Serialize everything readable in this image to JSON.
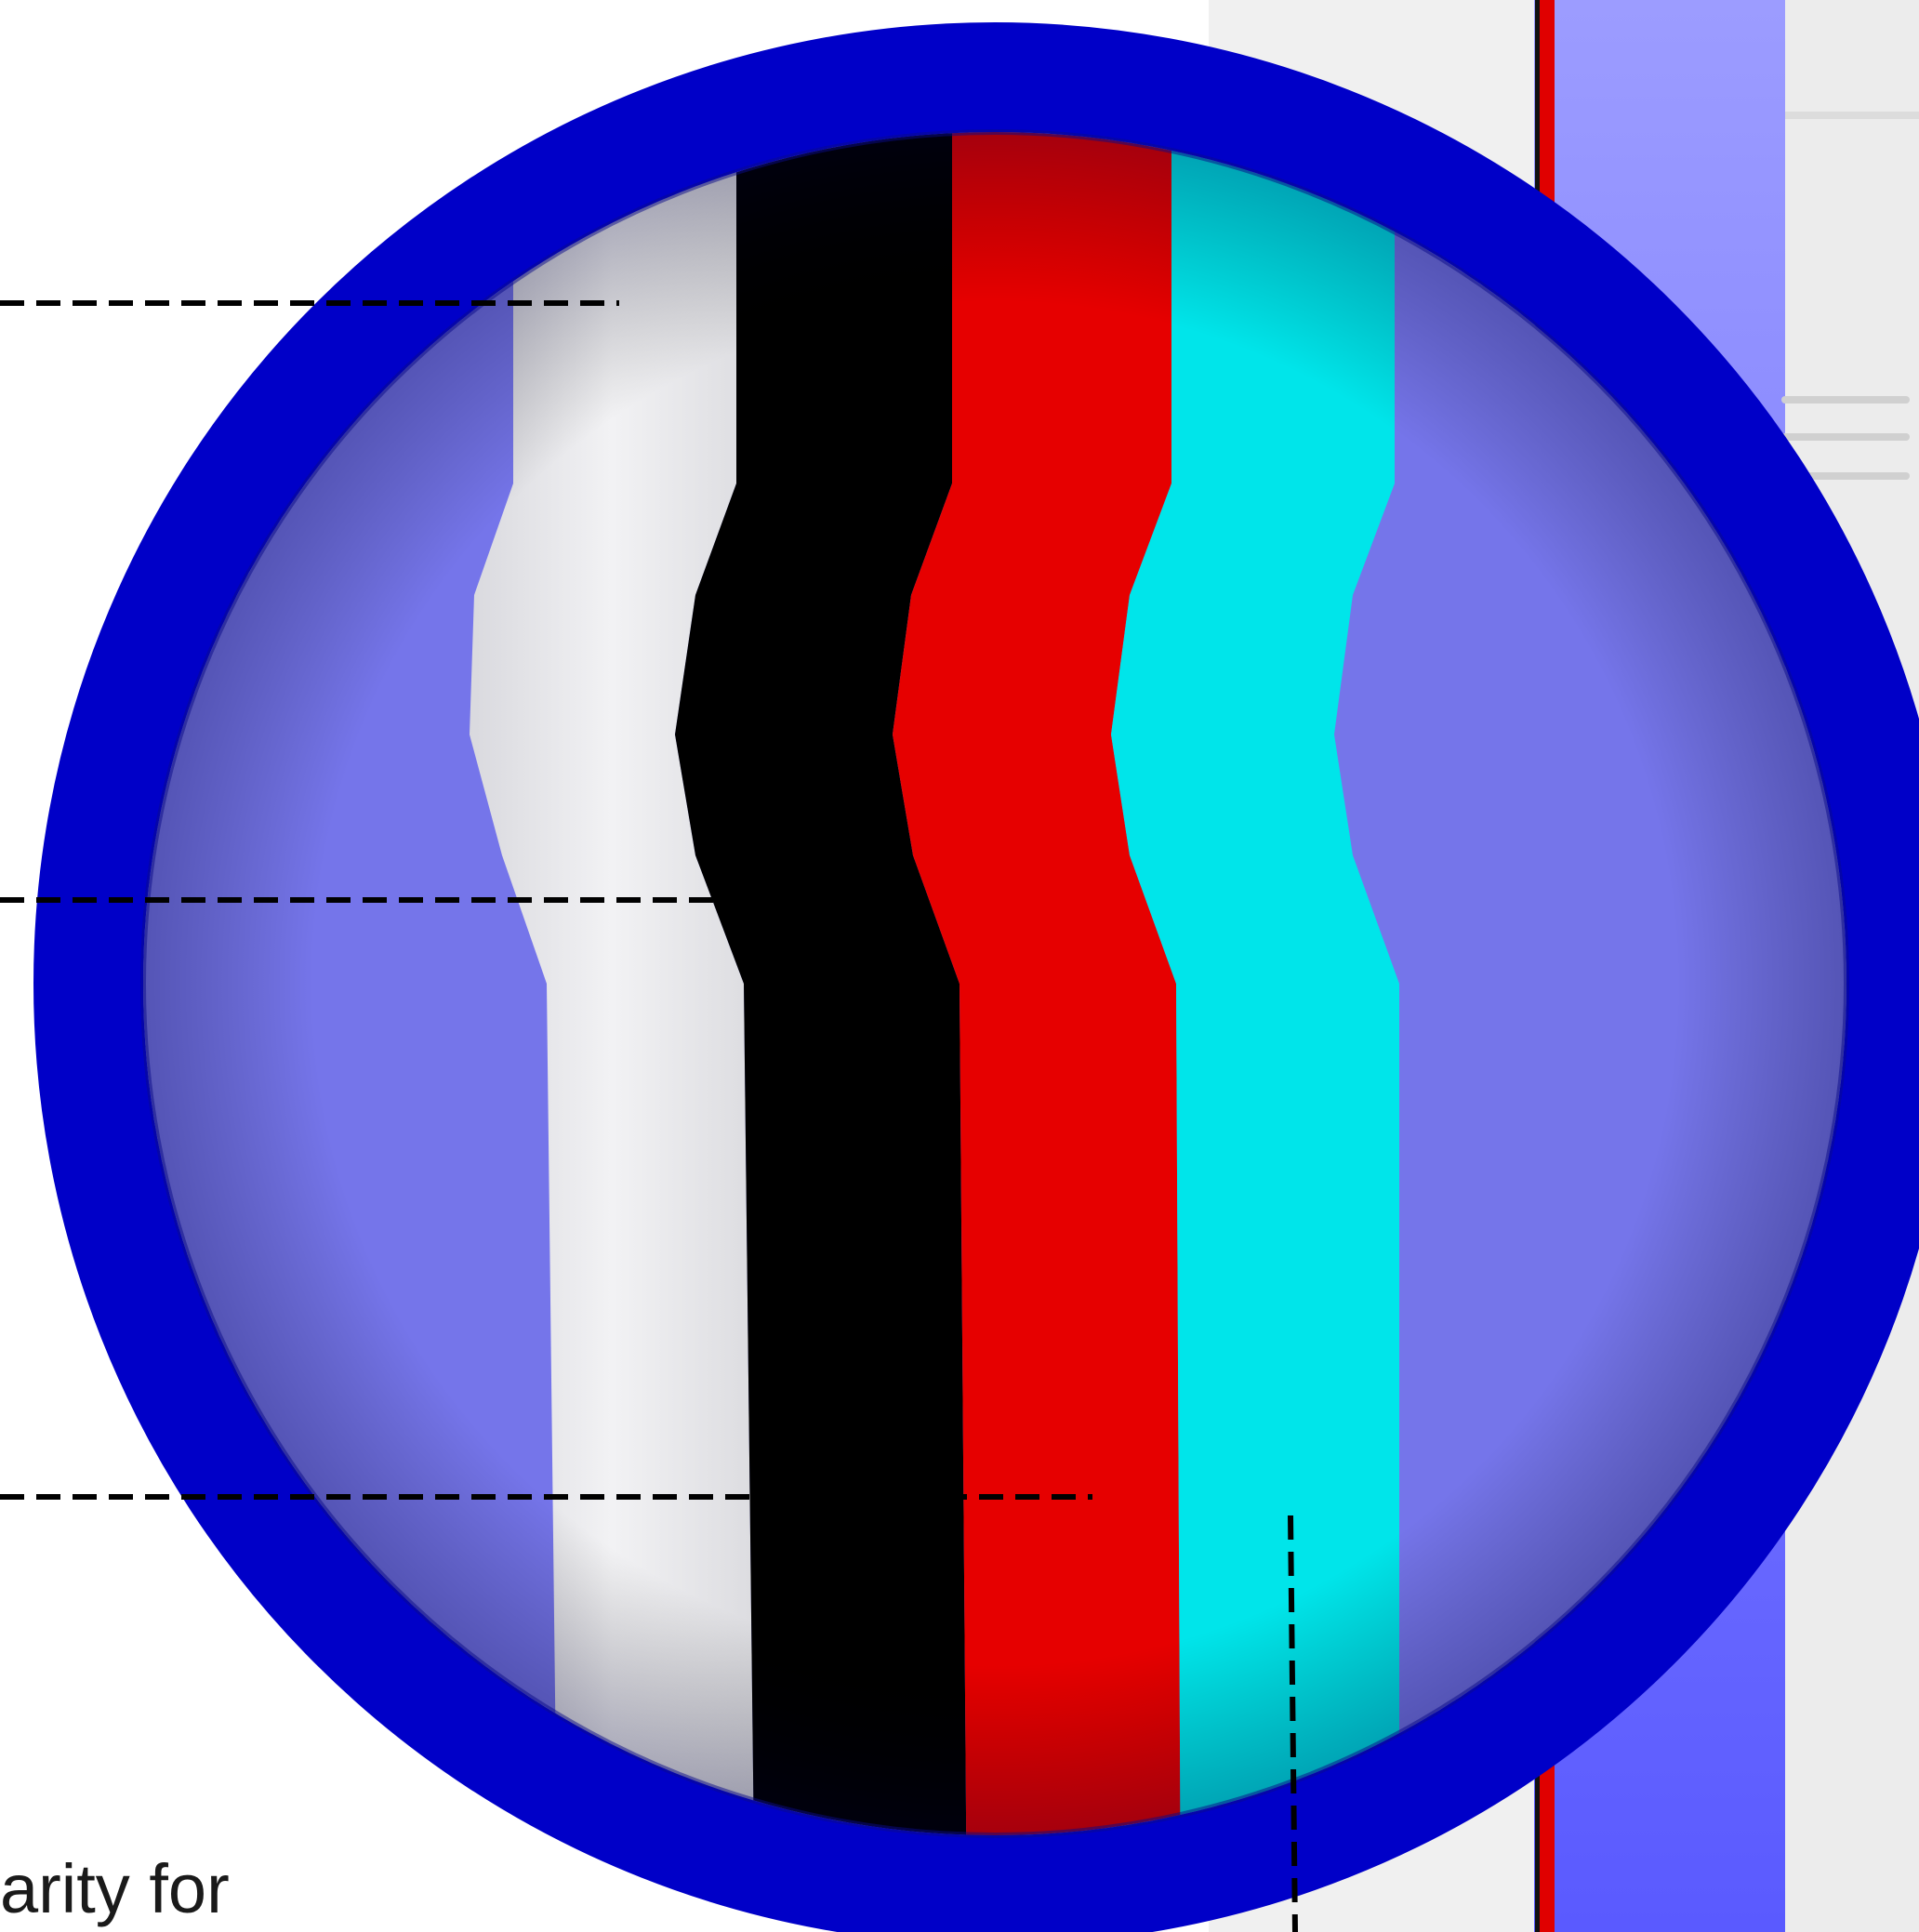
{
  "caption": {
    "text": "arity for"
  },
  "colors": {
    "ring": "#0000c8",
    "tint": "#7878ea",
    "layer_white": "#ececef",
    "layer_black": "#000000",
    "layer_red": "#e60000",
    "layer_cyan": "#00e5ea",
    "leader_line": "#000000",
    "device_body": "#eeeeee",
    "device_window": "#5f5fff",
    "device_edge_red": "#e00000"
  },
  "diagram": {
    "layers": [
      {
        "name": "layer-white",
        "color": "#ececef"
      },
      {
        "name": "layer-black",
        "color": "#000000"
      },
      {
        "name": "layer-red",
        "color": "#e60000"
      },
      {
        "name": "layer-cyan",
        "color": "#00e5ea"
      }
    ],
    "leader_lines": [
      "leader-line-1",
      "leader-line-2",
      "leader-line-3",
      "leader-line-4"
    ]
  }
}
